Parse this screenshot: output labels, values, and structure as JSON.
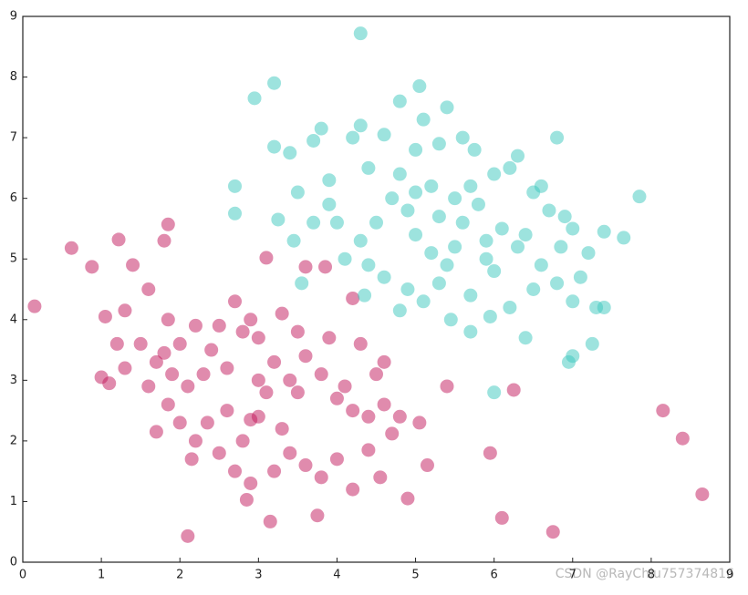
{
  "chart_data": {
    "type": "scatter",
    "xlim": [
      0,
      9
    ],
    "ylim": [
      0,
      9
    ],
    "xticks": [
      0,
      1,
      2,
      3,
      4,
      5,
      6,
      7,
      8,
      9
    ],
    "yticks": [
      0,
      1,
      2,
      3,
      4,
      5,
      6,
      7,
      8,
      9
    ],
    "series": [
      {
        "color": "#c2185b",
        "x": [
          0.15,
          0.62,
          0.88,
          1.22,
          1.85,
          1.8,
          2.1,
          3.15,
          3.75,
          6.1,
          6.75,
          8.65,
          8.4,
          8.15,
          5.95,
          6.25,
          5.4,
          5.05,
          5.15,
          4.9,
          4.7,
          3.1,
          3.6,
          3.85,
          4.2,
          1.0,
          1.1,
          1.05,
          1.3,
          1.4,
          1.6,
          1.85,
          2.0,
          2.2,
          2.4,
          2.6,
          2.8,
          2.9,
          3.0,
          3.2,
          3.4,
          3.5,
          3.6,
          3.8,
          4.0,
          4.1,
          4.2,
          4.4,
          4.5,
          4.6,
          4.3,
          2.0,
          2.2,
          2.5,
          2.7,
          2.9,
          2.85,
          3.2,
          3.4,
          3.6,
          3.8,
          4.0,
          4.2,
          4.4,
          4.55,
          1.7,
          1.85,
          2.15,
          2.35,
          2.6,
          2.8,
          3.0,
          3.1,
          3.3,
          1.5,
          1.7,
          1.9,
          2.1,
          2.3,
          2.5,
          2.7,
          3.3,
          3.5,
          3.9,
          1.6,
          1.3,
          1.2,
          4.8,
          4.6,
          3.0,
          2.9,
          1.8
        ],
        "values": [
          4.22,
          5.18,
          4.87,
          5.32,
          5.57,
          5.3,
          0.43,
          0.67,
          0.77,
          0.73,
          0.5,
          1.12,
          2.04,
          2.5,
          1.8,
          2.84,
          2.9,
          2.3,
          1.6,
          1.05,
          2.12,
          5.02,
          4.87,
          4.87,
          4.35,
          3.05,
          2.95,
          4.05,
          4.15,
          4.9,
          4.5,
          4.0,
          3.6,
          3.9,
          3.5,
          3.2,
          3.8,
          4.0,
          3.7,
          3.3,
          3.0,
          2.8,
          3.4,
          3.1,
          2.7,
          2.9,
          2.5,
          2.4,
          3.1,
          2.6,
          3.6,
          2.3,
          2.0,
          1.8,
          1.5,
          1.3,
          1.03,
          1.5,
          1.8,
          1.6,
          1.4,
          1.7,
          1.2,
          1.85,
          1.4,
          2.15,
          2.6,
          1.7,
          2.3,
          2.5,
          2.0,
          2.4,
          2.8,
          2.2,
          3.6,
          3.3,
          3.1,
          2.9,
          3.1,
          3.9,
          4.3,
          4.1,
          3.8,
          3.7,
          2.9,
          3.2,
          3.6,
          2.4,
          3.3,
          3.0,
          2.35,
          3.45
        ]
      },
      {
        "color": "#3cc8bd",
        "x": [
          4.3,
          3.2,
          2.95,
          5.05,
          6.8,
          7.85,
          7.65,
          7.4,
          7.4,
          7.25,
          7.0,
          6.95,
          6.4,
          6.0,
          5.7,
          5.45,
          5.95,
          4.8,
          4.35,
          3.55,
          3.25,
          3.45,
          2.7,
          2.7,
          3.2,
          3.4,
          3.5,
          3.7,
          3.8,
          3.9,
          4.2,
          4.3,
          4.4,
          4.6,
          4.8,
          5.0,
          5.1,
          5.4,
          5.3,
          5.6,
          5.75,
          6.0,
          6.2,
          6.3,
          6.5,
          6.7,
          6.9,
          7.0,
          7.2,
          7.1,
          7.0,
          6.8,
          6.6,
          6.3,
          6.1,
          5.9,
          5.8,
          5.6,
          5.5,
          5.4,
          5.2,
          5.0,
          4.9,
          4.7,
          4.5,
          4.3,
          4.1,
          4.0,
          3.9,
          4.6,
          4.9,
          5.1,
          5.3,
          5.7,
          6.0,
          6.2,
          6.5,
          5.2,
          5.5,
          5.7,
          5.0,
          4.8,
          5.3,
          5.9,
          6.4,
          6.6,
          4.4,
          3.7,
          7.3,
          6.85
        ],
        "values": [
          8.72,
          7.9,
          7.65,
          7.85,
          7.0,
          6.03,
          5.35,
          5.45,
          4.2,
          3.6,
          3.4,
          3.3,
          3.7,
          2.8,
          3.8,
          4.0,
          4.05,
          4.15,
          4.4,
          4.6,
          5.65,
          5.3,
          6.2,
          5.75,
          6.85,
          6.75,
          6.1,
          6.95,
          7.15,
          6.3,
          7.0,
          7.2,
          6.5,
          7.05,
          7.6,
          6.8,
          7.3,
          7.5,
          6.9,
          7.0,
          6.8,
          6.4,
          6.5,
          6.7,
          6.1,
          5.8,
          5.7,
          5.5,
          5.1,
          4.7,
          4.3,
          4.6,
          4.9,
          5.2,
          5.5,
          5.3,
          5.9,
          5.6,
          5.2,
          4.9,
          5.1,
          5.4,
          5.8,
          6.0,
          5.6,
          5.3,
          5.0,
          5.6,
          5.9,
          4.7,
          4.5,
          4.3,
          4.6,
          4.4,
          4.8,
          4.2,
          4.5,
          6.2,
          6.0,
          6.2,
          6.1,
          6.4,
          5.7,
          5.0,
          5.4,
          6.2,
          4.9,
          5.6,
          4.2,
          5.2
        ]
      }
    ]
  },
  "watermark": "CSDN @RayChiu757374816"
}
